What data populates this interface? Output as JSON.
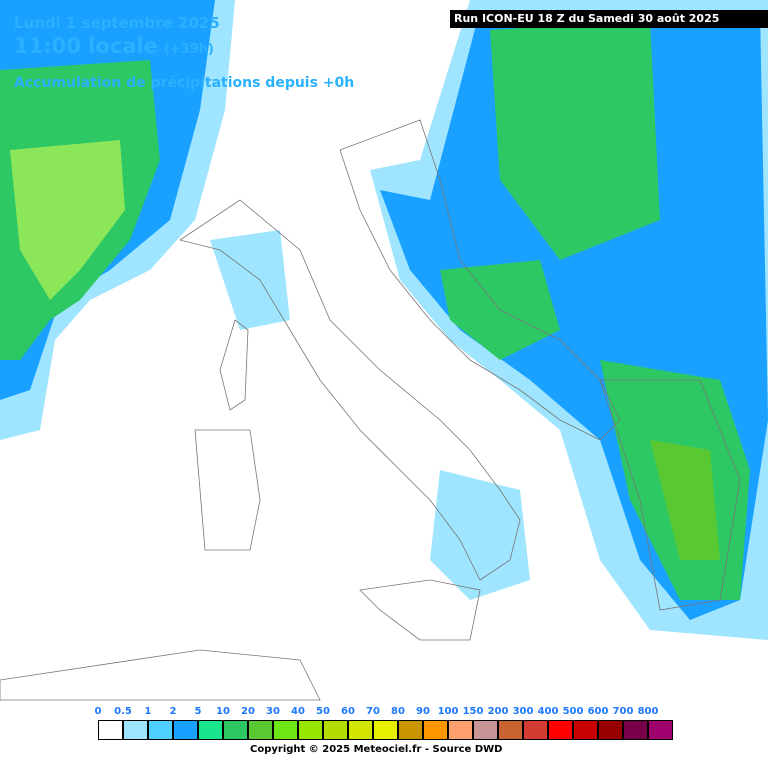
{
  "header": {
    "date": "Lundi 1 septembre 2025",
    "time": "11:00 locale",
    "lead": "(+39h)",
    "field": "Accumulation de précipitations depuis +0h",
    "run": "Run ICON-EU 18 Z du Samedi 30 août 2025"
  },
  "legend": {
    "items": [
      {
        "label": "0",
        "color": "#ffffff"
      },
      {
        "label": "0.5",
        "color": "#9fe5ff"
      },
      {
        "label": "1",
        "color": "#4fd0ff"
      },
      {
        "label": "2",
        "color": "#1aa0ff"
      },
      {
        "label": "5",
        "color": "#19e68c"
      },
      {
        "label": "10",
        "color": "#2dc864"
      },
      {
        "label": "20",
        "color": "#5ac832"
      },
      {
        "label": "30",
        "color": "#6ee614"
      },
      {
        "label": "40",
        "color": "#96e600"
      },
      {
        "label": "50",
        "color": "#b4dc00"
      },
      {
        "label": "60",
        "color": "#d2e600"
      },
      {
        "label": "70",
        "color": "#e6f000"
      },
      {
        "label": "80",
        "color": "#c89600"
      },
      {
        "label": "90",
        "color": "#ff9600"
      },
      {
        "label": "100",
        "color": "#ffa070"
      },
      {
        "label": "150",
        "color": "#c89696"
      },
      {
        "label": "200",
        "color": "#c86432"
      },
      {
        "label": "300",
        "color": "#d23c32"
      },
      {
        "label": "400",
        "color": "#ff0000"
      },
      {
        "label": "500",
        "color": "#c80000"
      },
      {
        "label": "600",
        "color": "#960000"
      },
      {
        "label": "700",
        "color": "#78004b"
      },
      {
        "label": "800",
        "color": "#a0006e"
      }
    ]
  },
  "footer": {
    "copyright": "Copyright © 2025 Meteociel.fr - Source DWD"
  }
}
